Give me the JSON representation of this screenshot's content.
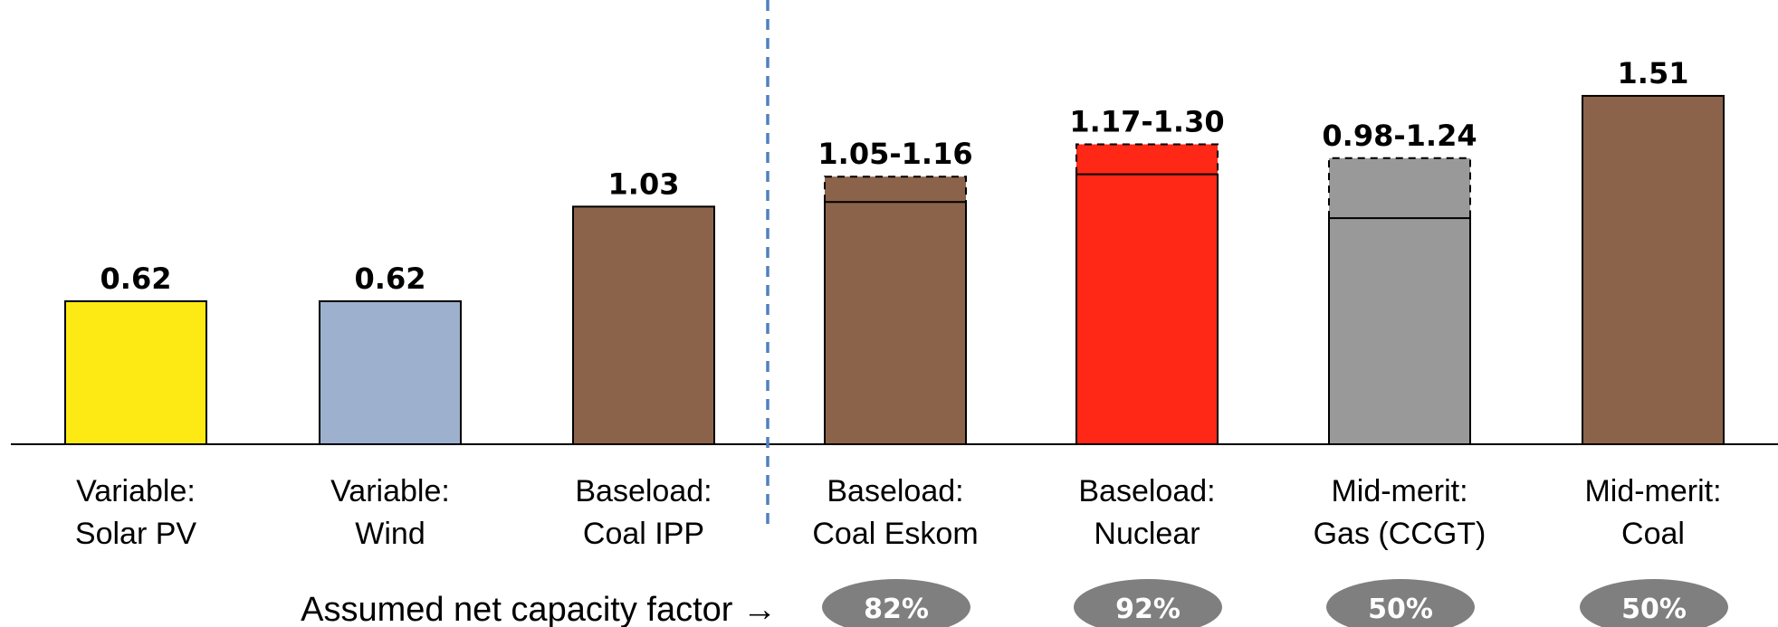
{
  "chart_data": {
    "type": "bar",
    "title": "",
    "xlabel": "",
    "ylabel": "",
    "ylim": [
      0,
      1.6
    ],
    "grid": false,
    "legend": "none",
    "categories": [
      {
        "line1": "Variable:",
        "line2": "Solar PV"
      },
      {
        "line1": "Variable:",
        "line2": "Wind"
      },
      {
        "line1": "Baseload:",
        "line2": "Coal IPP"
      },
      {
        "line1": "Baseload:",
        "line2": "Coal Eskom"
      },
      {
        "line1": "Baseload:",
        "line2": "Nuclear"
      },
      {
        "line1": "Mid-merit:",
        "line2": "Gas (CCGT)"
      },
      {
        "line1": "Mid-merit:",
        "line2": "Coal"
      }
    ],
    "bars": [
      {
        "low": 0.62,
        "high": null,
        "label": "0.62",
        "color": "#fdea14"
      },
      {
        "low": 0.62,
        "high": null,
        "label": "0.62",
        "color": "#9db0cd"
      },
      {
        "low": 1.03,
        "high": null,
        "label": "1.03",
        "color": "#8b634b"
      },
      {
        "low": 1.05,
        "high": 1.16,
        "label": "1.05-1.16",
        "color": "#8b634b"
      },
      {
        "low": 1.17,
        "high": 1.3,
        "label": "1.17-1.30",
        "color": "#ff2715"
      },
      {
        "low": 0.98,
        "high": 1.24,
        "label": "0.98-1.24",
        "color": "#999999"
      },
      {
        "low": 1.51,
        "high": null,
        "label": "1.51",
        "color": "#8b634b"
      }
    ],
    "separator_after_index": 2,
    "capacity_factor": {
      "caption": "Assumed net capacity factor →",
      "values": [
        null,
        null,
        null,
        "82%",
        "92%",
        "50%",
        "50%"
      ],
      "badge_color": "#7f7f7f"
    }
  }
}
